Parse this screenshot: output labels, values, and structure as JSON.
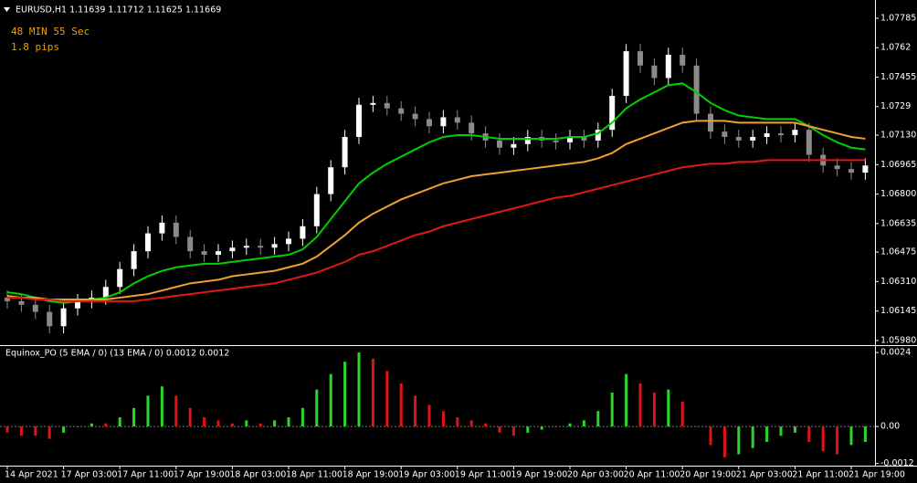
{
  "chart_data": [
    {
      "type": "candlestick",
      "title": "EURUSD,H1  1.11639 1.11712 1.11625 1.11669",
      "annotations": [
        "48 MIN 55 Sec",
        "1.8 pips"
      ],
      "up_color": "#ffffff",
      "down_color": "#8a8a8a",
      "open": [
        1.0622,
        1.062,
        1.0618,
        1.0614,
        1.0606,
        1.0616,
        1.062,
        1.0622,
        1.0628,
        1.0638,
        1.0648,
        1.0658,
        1.0664,
        1.0656,
        1.0648,
        1.0646,
        1.0648,
        1.065,
        1.0651,
        1.065,
        1.0652,
        1.0655,
        1.0662,
        1.068,
        1.0695,
        1.0712,
        1.073,
        1.0731,
        1.0728,
        1.0725,
        1.0722,
        1.0718,
        1.0723,
        1.072,
        1.0714,
        1.071,
        1.0706,
        1.0708,
        1.0712,
        1.071,
        1.0709,
        1.0712,
        1.071,
        1.0716,
        1.0735,
        1.076,
        1.0752,
        1.0745,
        1.0758,
        1.0752,
        1.0725,
        1.0715,
        1.0712,
        1.071,
        1.0712,
        1.0714,
        1.0713,
        1.0716,
        1.0702,
        1.0696,
        1.0694,
        1.0692
      ],
      "high": [
        1.0626,
        1.0624,
        1.0622,
        1.0618,
        1.062,
        1.0624,
        1.0626,
        1.0632,
        1.0642,
        1.0652,
        1.0662,
        1.0668,
        1.0668,
        1.066,
        1.0652,
        1.0652,
        1.0654,
        1.0655,
        1.0655,
        1.0656,
        1.0659,
        1.0666,
        1.0684,
        1.0699,
        1.0716,
        1.0734,
        1.0735,
        1.0735,
        1.0732,
        1.0729,
        1.0726,
        1.0727,
        1.0727,
        1.0724,
        1.0718,
        1.0714,
        1.0712,
        1.0716,
        1.0716,
        1.0714,
        1.0716,
        1.0716,
        1.072,
        1.0739,
        1.0764,
        1.0764,
        1.0756,
        1.0762,
        1.0762,
        1.0756,
        1.0729,
        1.0719,
        1.0716,
        1.0716,
        1.0718,
        1.0718,
        1.072,
        1.072,
        1.0706,
        1.07,
        1.0698,
        1.07
      ],
      "low": [
        1.0616,
        1.0614,
        1.061,
        1.0602,
        1.0602,
        1.0612,
        1.0616,
        1.0618,
        1.0624,
        1.0634,
        1.0644,
        1.0654,
        1.0652,
        1.0644,
        1.0642,
        1.0642,
        1.0644,
        1.0646,
        1.0646,
        1.0646,
        1.0648,
        1.0651,
        1.0658,
        1.0676,
        1.0691,
        1.0708,
        1.0726,
        1.0724,
        1.0721,
        1.0718,
        1.0714,
        1.0714,
        1.0716,
        1.071,
        1.0706,
        1.0702,
        1.0702,
        1.0704,
        1.0706,
        1.0705,
        1.0705,
        1.0706,
        1.0706,
        1.0712,
        1.0731,
        1.0748,
        1.0741,
        1.0741,
        1.0748,
        1.0721,
        1.0711,
        1.0708,
        1.0706,
        1.0706,
        1.0708,
        1.0709,
        1.0709,
        1.0698,
        1.0692,
        1.069,
        1.0688,
        1.0688
      ],
      "close": [
        1.062,
        1.0618,
        1.0614,
        1.0606,
        1.0616,
        1.062,
        1.0622,
        1.0628,
        1.0638,
        1.0648,
        1.0658,
        1.0664,
        1.0656,
        1.0648,
        1.0646,
        1.0648,
        1.065,
        1.0651,
        1.065,
        1.0652,
        1.0655,
        1.0662,
        1.068,
        1.0695,
        1.0712,
        1.073,
        1.0731,
        1.0728,
        1.0725,
        1.0722,
        1.0718,
        1.0723,
        1.072,
        1.0714,
        1.071,
        1.0706,
        1.0708,
        1.0712,
        1.071,
        1.0709,
        1.0712,
        1.071,
        1.0716,
        1.0735,
        1.076,
        1.0752,
        1.0745,
        1.0758,
        1.0752,
        1.0725,
        1.0715,
        1.0712,
        1.071,
        1.0712,
        1.0714,
        1.0713,
        1.0716,
        1.0702,
        1.0696,
        1.0694,
        1.0692,
        1.0696
      ],
      "lines": [
        {
          "color": "#00d000",
          "values": [
            1.0625,
            1.0624,
            1.0622,
            1.062,
            1.0619,
            1.062,
            1.0621,
            1.0622,
            1.0625,
            1.063,
            1.0634,
            1.0637,
            1.0639,
            1.064,
            1.0641,
            1.0641,
            1.0642,
            1.0643,
            1.0644,
            1.0645,
            1.0646,
            1.0649,
            1.0656,
            1.0666,
            1.0676,
            1.0686,
            1.0692,
            1.0697,
            1.0701,
            1.0705,
            1.0709,
            1.0712,
            1.0713,
            1.0713,
            1.0712,
            1.0711,
            1.0711,
            1.0711,
            1.0711,
            1.0711,
            1.0712,
            1.0712,
            1.0714,
            1.072,
            1.0728,
            1.0733,
            1.0737,
            1.0741,
            1.0742,
            1.0737,
            1.0731,
            1.0727,
            1.0724,
            1.0723,
            1.0722,
            1.0722,
            1.0722,
            1.0718,
            1.0713,
            1.0709,
            1.0706,
            1.0705
          ]
        },
        {
          "color": "#f0a030",
          "values": [
            1.0623,
            1.0622,
            1.0622,
            1.0621,
            1.0621,
            1.0621,
            1.0621,
            1.0621,
            1.0622,
            1.0623,
            1.0624,
            1.0626,
            1.0628,
            1.063,
            1.0631,
            1.0632,
            1.0634,
            1.0635,
            1.0636,
            1.0637,
            1.0639,
            1.0641,
            1.0645,
            1.0651,
            1.0657,
            1.0664,
            1.0669,
            1.0673,
            1.0677,
            1.068,
            1.0683,
            1.0686,
            1.0688,
            1.069,
            1.0691,
            1.0692,
            1.0693,
            1.0694,
            1.0695,
            1.0696,
            1.0697,
            1.0698,
            1.07,
            1.0703,
            1.0708,
            1.0711,
            1.0714,
            1.0717,
            1.072,
            1.0721,
            1.0721,
            1.0721,
            1.072,
            1.072,
            1.072,
            1.072,
            1.072,
            1.0718,
            1.0716,
            1.0714,
            1.0712,
            1.0711
          ]
        },
        {
          "color": "#e01818",
          "values": [
            1.0622,
            1.0622,
            1.0621,
            1.0621,
            1.062,
            1.062,
            1.062,
            1.062,
            1.062,
            1.062,
            1.0621,
            1.0622,
            1.0623,
            1.0624,
            1.0625,
            1.0626,
            1.0627,
            1.0628,
            1.0629,
            1.063,
            1.0632,
            1.0634,
            1.0636,
            1.0639,
            1.0642,
            1.0646,
            1.0648,
            1.0651,
            1.0654,
            1.0657,
            1.0659,
            1.0662,
            1.0664,
            1.0666,
            1.0668,
            1.067,
            1.0672,
            1.0674,
            1.0676,
            1.0678,
            1.0679,
            1.0681,
            1.0683,
            1.0685,
            1.0687,
            1.0689,
            1.0691,
            1.0693,
            1.0695,
            1.0696,
            1.0697,
            1.0697,
            1.0698,
            1.0698,
            1.0699,
            1.0699,
            1.0699,
            1.0699,
            1.0699,
            1.0699,
            1.0699,
            1.0699
          ]
        }
      ],
      "ylim": [
        1.05954,
        1.07887
      ],
      "yticks": [
        1.07785,
        1.0762,
        1.07455,
        1.0729,
        {
          "value": 1.0713,
          "label": "1.07130"
        },
        1.06965,
        {
          "value": 1.068,
          "label": "1.06800"
        },
        1.06635,
        1.06475,
        {
          "value": 1.0631,
          "label": "1.06310"
        },
        1.06145,
        {
          "value": 1.0598,
          "label": "1.05980"
        }
      ]
    },
    {
      "type": "bar",
      "title": "Equinox_PO (5 EMA / 0) (13 EMA / 0) 0.0012 0.0012",
      "up_color": "#2bd62b",
      "down_color": "#e01414",
      "categories": [
        "14 Apr 2021",
        null,
        null,
        null,
        "17 Apr 03:00",
        null,
        null,
        null,
        "17 Apr 11:00",
        null,
        null,
        null,
        "17 Apr 19:00",
        null,
        null,
        null,
        "18 Apr 03:00",
        null,
        null,
        null,
        "18 Apr 11:00",
        null,
        null,
        null,
        "18 Apr 19:00",
        null,
        null,
        null,
        "19 Apr 03:00",
        null,
        null,
        null,
        "19 Apr 11:00",
        null,
        null,
        null,
        "19 Apr 19:00",
        null,
        null,
        null,
        "20 Apr 03:00",
        null,
        null,
        null,
        "20 Apr 11:00",
        null,
        null,
        null,
        "20 Apr 19:00",
        null,
        null,
        null,
        "21 Apr 03:00",
        null,
        null,
        null,
        "21 Apr 11:00",
        null,
        null,
        null,
        "21 Apr 19:00",
        null
      ],
      "values": [
        -0.0002,
        -0.0003,
        -0.0003,
        -0.0004,
        -0.0002,
        0,
        0.0001,
        0.0001,
        0.0003,
        0.0006,
        0.001,
        0.0013,
        0.001,
        0.0006,
        0.0003,
        0.0002,
        0.0001,
        0.0002,
        0.0001,
        0.0002,
        0.0003,
        0.0006,
        0.0012,
        0.0017,
        0.0021,
        0.0024,
        0.0022,
        0.0018,
        0.0014,
        0.001,
        0.0007,
        0.0005,
        0.0003,
        0.0002,
        0.0001,
        -0.0002,
        -0.0003,
        -0.0002,
        -0.0001,
        0,
        0.0001,
        0.0002,
        0.0005,
        0.0011,
        0.0017,
        0.0014,
        0.0011,
        0.0012,
        0.0008,
        0,
        -0.0006,
        -0.001,
        -0.0009,
        -0.0007,
        -0.0005,
        -0.0003,
        -0.0002,
        -0.0005,
        -0.0008,
        -0.0009,
        -0.0006,
        -0.0005
      ],
      "ylim": [
        -0.00127,
        0.00258
      ],
      "yticks": [
        0.0024,
        {
          "value": 0,
          "label": "0.00"
        },
        -0.0012
      ]
    }
  ]
}
